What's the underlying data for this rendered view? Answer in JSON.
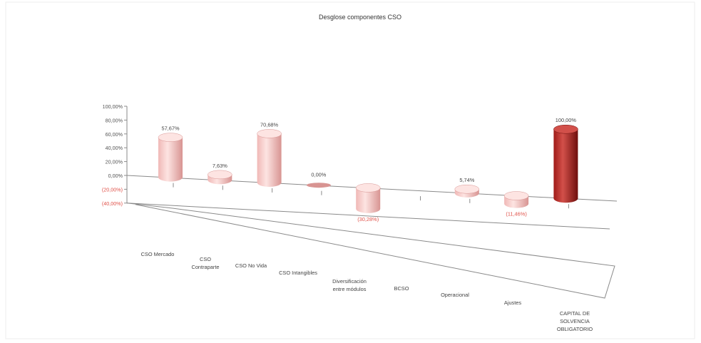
{
  "chart_data": {
    "type": "bar",
    "style": "3d-cylinder",
    "title": "Desglose componentes CSO",
    "categories": [
      [
        "CSO Mercado"
      ],
      [
        "CSO",
        "Contraparte"
      ],
      [
        "CSO No Vida"
      ],
      [
        "CSO Intangibles"
      ],
      [
        "Diversificación",
        "entre módulos"
      ],
      [
        "BCSO"
      ],
      [
        "Operacional"
      ],
      [
        "Ajustes"
      ],
      [
        "CAPITAL DE",
        "SOLVENCIA",
        "OBLIGATORIO"
      ]
    ],
    "values": [
      57.67,
      7.63,
      70.68,
      0.0,
      -30.28,
      null,
      5.74,
      -11.46,
      100.0
    ],
    "data_labels": [
      "57,67%",
      "7,63%",
      "70,68%",
      "0,00%",
      "(30,28%)",
      "",
      "5,74%",
      "(11,46%)",
      "100,00%"
    ],
    "ylim": [
      -40,
      100
    ],
    "yticks": [
      100,
      80,
      60,
      40,
      20,
      0,
      -20,
      -40
    ],
    "ytick_labels": [
      "100,00%",
      "80,00%",
      "60,00%",
      "40,00%",
      "20,00%",
      "0,00%",
      "(20,00%)",
      "(40,00%)"
    ],
    "grid": false,
    "legend": "none",
    "colors": {
      "bar": "#f0b8b6",
      "bar_light": "#fde4e2",
      "bar_dark": "#d89492",
      "total_bar": "#a01c18",
      "total_light": "#d2504a",
      "total_dark": "#6e0e0c",
      "negative_label": "#e0524a",
      "axis": "#8a8a8a"
    }
  }
}
